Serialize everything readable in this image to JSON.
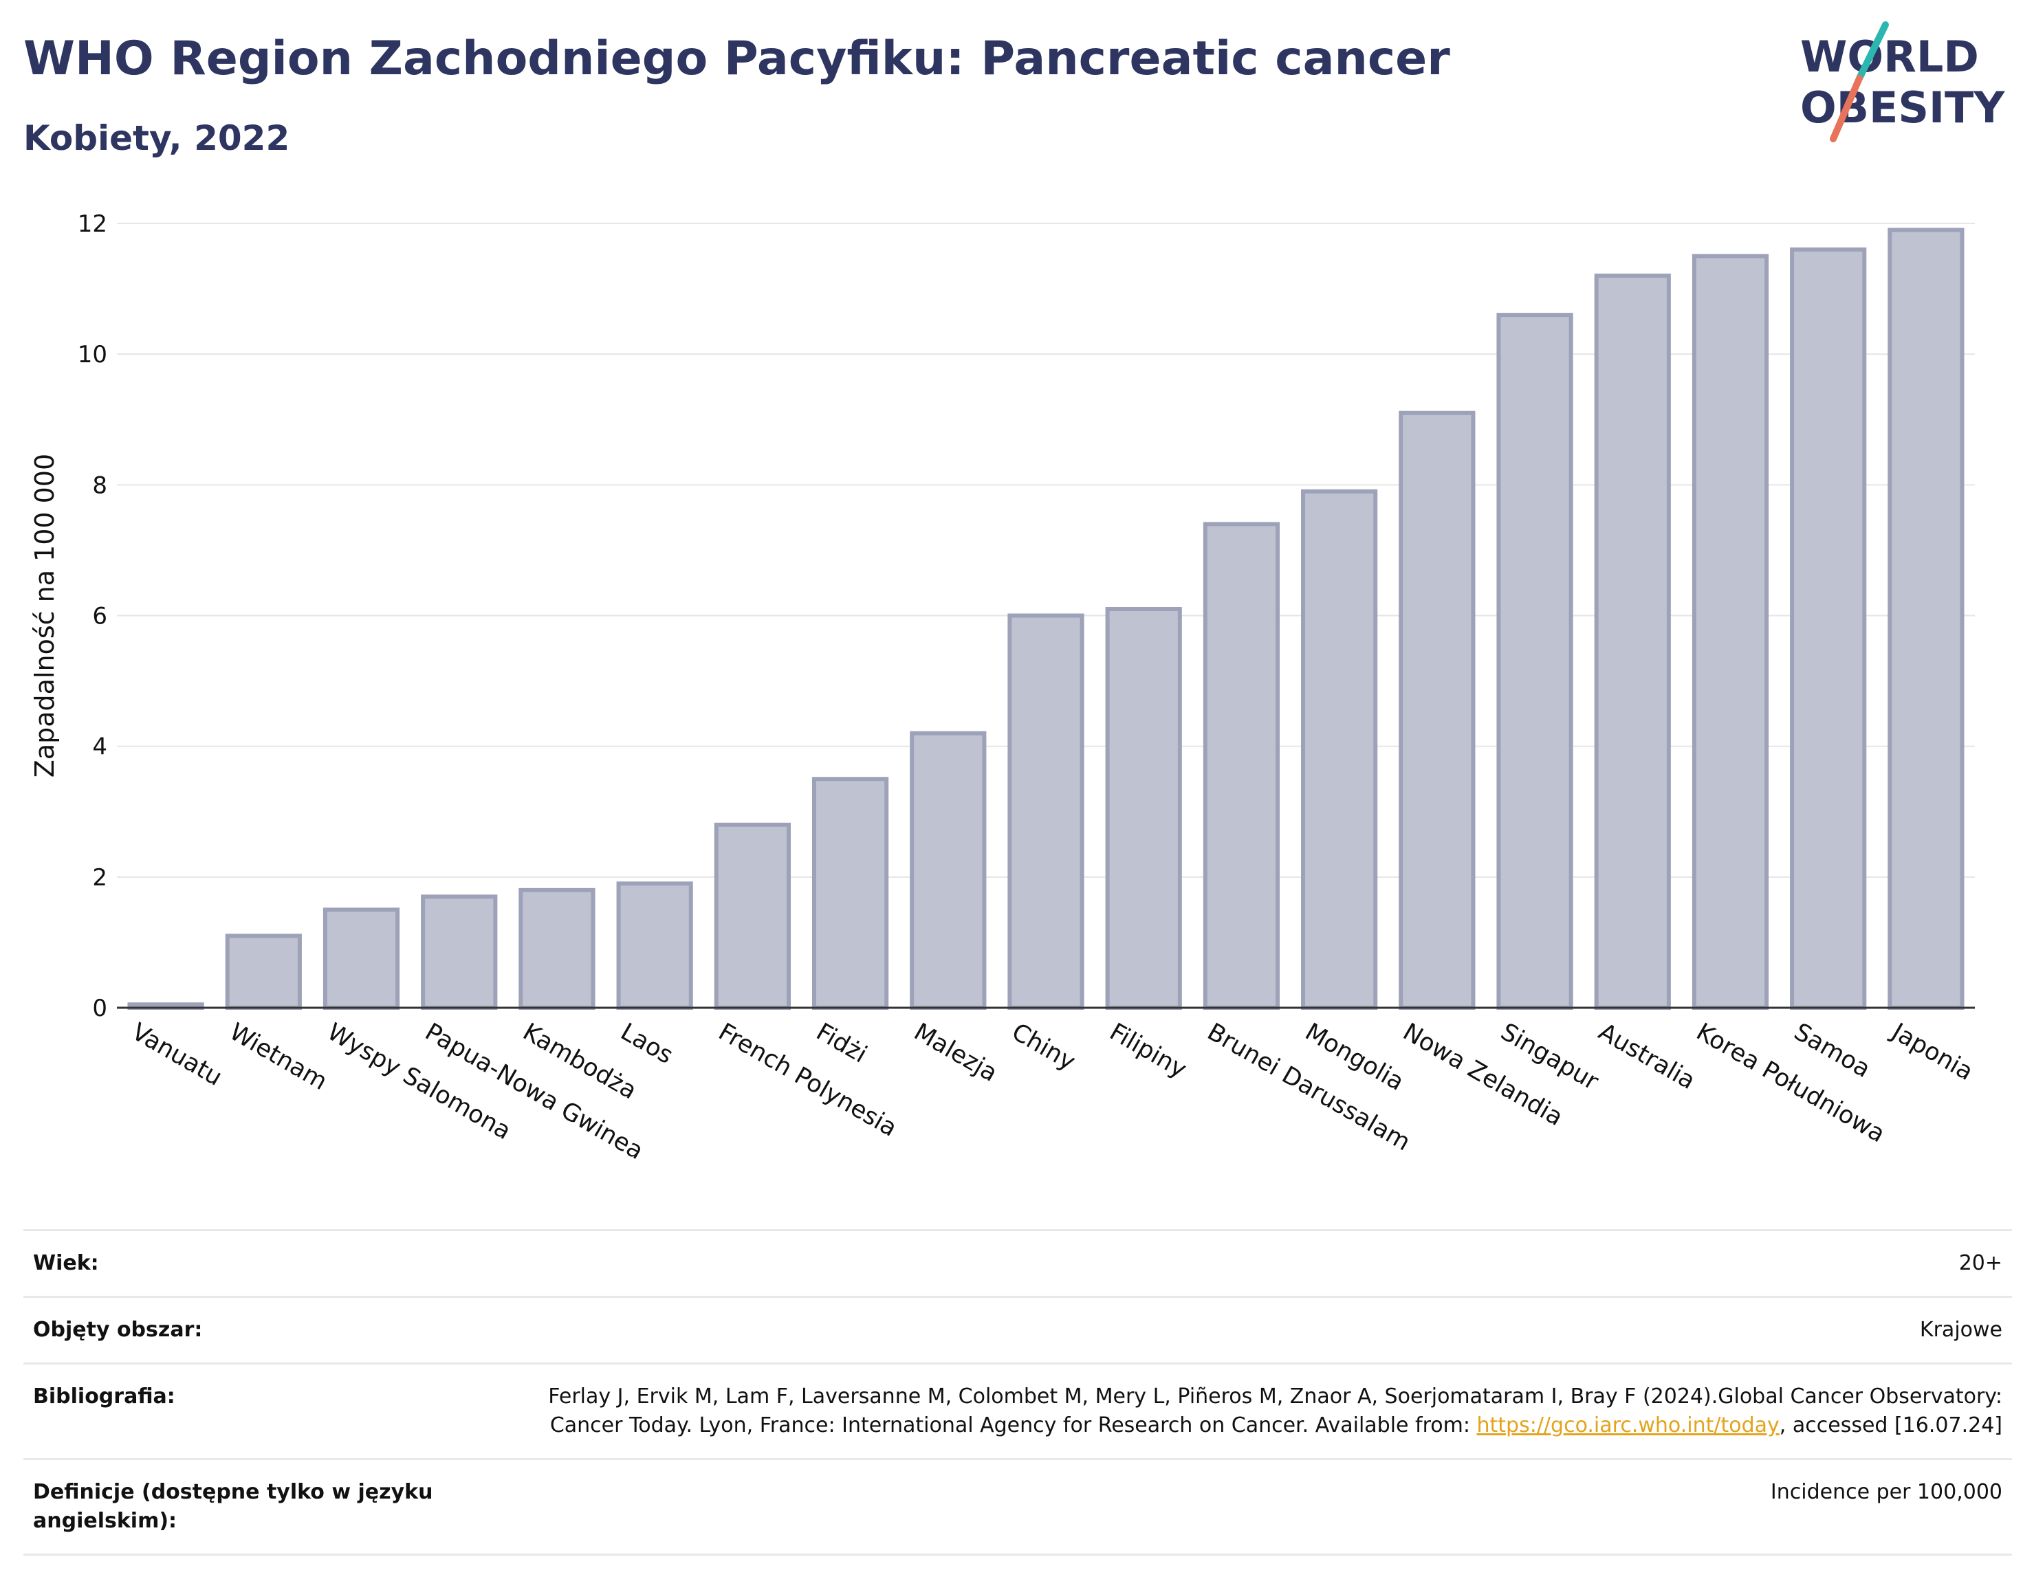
{
  "header": {
    "title": "WHO Region Zachodniego Pacyfiku: Pancreatic cancer",
    "subtitle": "Kobiety, 2022"
  },
  "logo": {
    "line1": "WORLD",
    "line2": "OBESITY",
    "text_color": "#2d3560",
    "slash_colors": [
      "#2bb6b0",
      "#e8735a"
    ]
  },
  "chart_data": {
    "type": "bar",
    "categories": [
      "Vanuatu",
      "Wietnam",
      "Wyspy Salomona",
      "Papua-Nowa Gwinea",
      "Kambodża",
      "Laos",
      "French Polynesia",
      "Fidżi",
      "Malezja",
      "Chiny",
      "Filipiny",
      "Brunei Darussalam",
      "Mongolia",
      "Nowa Zelandia",
      "Singapur",
      "Australia",
      "Korea Południowa",
      "Samoa",
      "Japonia"
    ],
    "values": [
      0.05,
      1.1,
      1.5,
      1.7,
      1.8,
      1.9,
      2.8,
      3.5,
      4.2,
      6.0,
      6.1,
      7.4,
      7.9,
      9.1,
      10.6,
      11.2,
      11.5,
      11.6,
      11.9
    ],
    "title": "WHO Region Zachodniego Pacyfiku: Pancreatic cancer",
    "subtitle": "Kobiety, 2022",
    "xlabel": "",
    "ylabel": "Zapadalność na 100 000",
    "ylim": [
      0,
      12
    ],
    "yticks": [
      0,
      2,
      4,
      6,
      8,
      10,
      12
    ],
    "grid": true,
    "bar_fill": "#bfc2d0",
    "bar_stroke": "#9da2b8"
  },
  "meta": {
    "rows": [
      {
        "label": "Wiek:",
        "value": "20+"
      },
      {
        "label": "Objęty obszar:",
        "value": "Krajowe"
      },
      {
        "label": "Bibliografia:",
        "value_before": "Ferlay J, Ervik M, Lam F, Laversanne M, Colombet M, Mery L, Piñeros M, Znaor A, Soerjomataram I, Bray F (2024).Global Cancer Observatory: Cancer Today. Lyon, France: International Agency for Research on Cancer. Available from: ",
        "link": "https://gco.iarc.who.int/today",
        "value_after": ", accessed [16.07.24]"
      },
      {
        "label": "Definicje (dostępne tylko w języku angielskim):",
        "value": "Incidence per 100,000"
      }
    ]
  }
}
